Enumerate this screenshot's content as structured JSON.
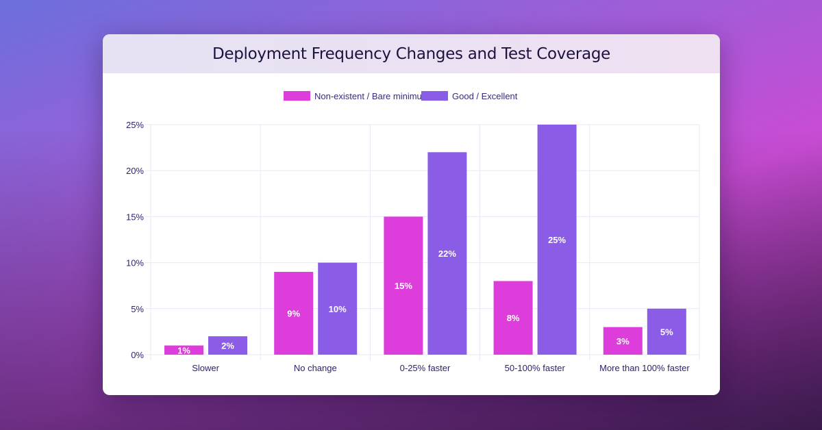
{
  "chart_data": {
    "type": "bar",
    "title": "Deployment Frequency Changes and Test Coverage",
    "categories": [
      "Slower",
      "No change",
      "0-25% faster",
      "50-100% faster",
      "More than 100% faster"
    ],
    "series": [
      {
        "name": "Non-existent / Bare minimum",
        "values": [
          1,
          9,
          15,
          8,
          3
        ],
        "color": "#dd3ddb"
      },
      {
        "name": "Good / Excellent",
        "values": [
          2,
          10,
          22,
          25,
          5
        ],
        "color": "#8b5ce6"
      }
    ],
    "yticks": [
      "0%",
      "5%",
      "10%",
      "15%",
      "20%",
      "25%"
    ],
    "ylim": [
      0,
      25
    ],
    "value_suffix": "%",
    "grid": true,
    "legend": "top"
  }
}
